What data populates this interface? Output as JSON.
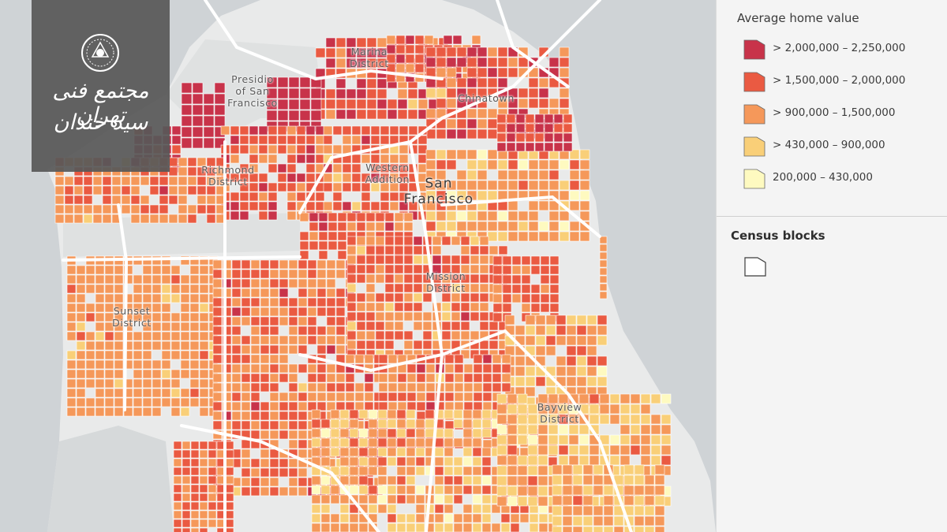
{
  "map": {
    "neighborhoods": [
      {
        "name": "Marina\nDistrict",
        "kind": "district"
      },
      {
        "name": "Presidio\nof San\nFrancisco",
        "kind": "district"
      },
      {
        "name": "Chinatown",
        "kind": "district"
      },
      {
        "name": "Richmond\nDistrict",
        "kind": "district"
      },
      {
        "name": "Western\nAddition",
        "kind": "district"
      },
      {
        "name": "San\nFrancisco",
        "kind": "city"
      },
      {
        "name": "Mission\nDistrict",
        "kind": "district"
      },
      {
        "name": "Sunset\nDistrict",
        "kind": "district"
      },
      {
        "name": "Bayview\nDistrict",
        "kind": "district"
      }
    ],
    "colors": {
      "water": "#cfd3d6",
      "land": "#e9eaea",
      "park": "#dfe1e1",
      "road": "#ffffff",
      "block_outline": "#ffffff"
    }
  },
  "watermark": {
    "line1": "مجتمع فنی تهران",
    "line2": "سید خندان",
    "logo_icon": "institute-seal-icon"
  },
  "legend": {
    "title": "Average home value",
    "classes": [
      {
        "label": "> 2,000,000 – 2,250,000",
        "color": "#c8334a"
      },
      {
        "label": "> 1,500,000 – 2,000,000",
        "color": "#ea5a42"
      },
      {
        "label": "> 900,000 – 1,500,000",
        "color": "#f5985a"
      },
      {
        "label": "> 430,000 – 900,000",
        "color": "#f9cf78"
      },
      {
        "label": "200,000 – 430,000",
        "color": "#fefac0"
      }
    ]
  },
  "census_blocks": {
    "title": "Census blocks",
    "icon": "census-block-outline-icon"
  }
}
